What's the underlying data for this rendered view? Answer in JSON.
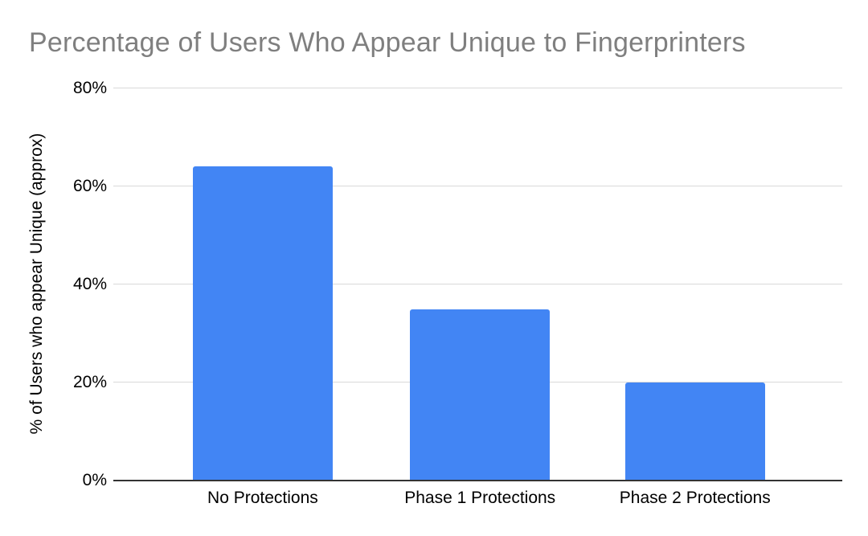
{
  "chart_data": {
    "type": "bar",
    "title": "Percentage of Users Who Appear Unique to Fingerprinters",
    "xlabel": "",
    "ylabel": "% of Users who appear Unique (approx)",
    "categories": [
      "No Protections",
      "Phase 1 Protections",
      "Phase 2 Protections"
    ],
    "values": [
      64,
      34.8,
      19.8
    ],
    "ylim": [
      0,
      80
    ],
    "yticks": [
      0,
      20,
      40,
      60,
      80
    ],
    "ytick_labels": [
      "0%",
      "20%",
      "40%",
      "60%",
      "80%"
    ],
    "grid": true,
    "legend": false,
    "colors": {
      "bar": "#4285f4",
      "gridline": "#d9d9d9",
      "axis_line": "#333333",
      "title_text": "#7f7f7f",
      "tick_text": "#000000"
    }
  }
}
